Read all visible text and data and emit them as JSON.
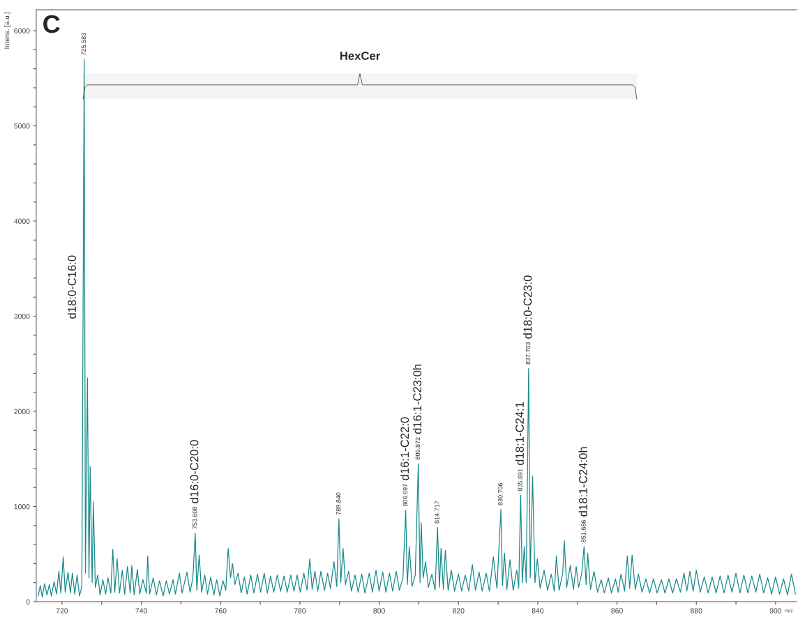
{
  "chart_data": {
    "type": "line",
    "title": "C",
    "xlabel": "m/z",
    "ylabel": "Intens. [a.u.]",
    "xlim": [
      713.5,
      905.3
    ],
    "ylim": [
      0,
      6220
    ],
    "xticks": [
      720,
      {
        "value": 730,
        "label": null
      },
      740,
      {
        "value": 750,
        "label": null
      },
      760,
      {
        "value": 770,
        "label": null
      },
      780,
      {
        "value": 790,
        "label": null
      },
      800,
      {
        "value": 810,
        "label": null
      },
      820,
      {
        "value": 830,
        "label": null
      },
      840,
      {
        "value": 850,
        "label": null
      },
      860,
      {
        "value": 870,
        "label": null
      },
      880,
      {
        "value": 890,
        "label": null
      },
      900
    ],
    "yticks": [
      0,
      {
        "value": 200,
        "label": null
      },
      {
        "value": 400,
        "label": null
      },
      {
        "value": 600,
        "label": null
      },
      {
        "value": 800,
        "label": null
      },
      1000,
      {
        "value": 1200,
        "label": null
      },
      {
        "value": 1400,
        "label": null
      },
      {
        "value": 1600,
        "label": null
      },
      {
        "value": 1800,
        "label": null
      },
      2000,
      {
        "value": 2200,
        "label": null
      },
      {
        "value": 2400,
        "label": null
      },
      {
        "value": 2600,
        "label": null
      },
      {
        "value": 2800,
        "label": null
      },
      3000,
      {
        "value": 3200,
        "label": null
      },
      {
        "value": 3400,
        "label": null
      },
      {
        "value": 3600,
        "label": null
      },
      {
        "value": 3800,
        "label": null
      },
      4000,
      {
        "value": 4200,
        "label": null
      },
      {
        "value": 4400,
        "label": null
      },
      {
        "value": 4600,
        "label": null
      },
      {
        "value": 4800,
        "label": null
      },
      5000,
      {
        "value": 5200,
        "label": null
      },
      {
        "value": 5400,
        "label": null
      },
      {
        "value": 5600,
        "label": null
      },
      {
        "value": 5800,
        "label": null
      },
      6000
    ],
    "grid": false,
    "legend": false,
    "series": [
      {
        "color": "#1a8a8a",
        "x": [
          714,
          714.5,
          715,
          715.6,
          716.2,
          716.8,
          717.3,
          718,
          718.6,
          719.2,
          719.7,
          720.3,
          720.8,
          721.5,
          722.1,
          722.6,
          723.2,
          723.8,
          724.4,
          725.0,
          725.583,
          725.9,
          726.4,
          726.8,
          727.1,
          727.6,
          727.9,
          728.4,
          729,
          729.6,
          730.3,
          731,
          731.6,
          732.3,
          732.8,
          733.3,
          733.9,
          734.5,
          735.2,
          735.8,
          736.5,
          737.2,
          737.6,
          738.2,
          739,
          739.6,
          740.4,
          741.3,
          741.6,
          742.1,
          743,
          743.8,
          744.6,
          745.5,
          746.3,
          747.1,
          748,
          748.6,
          749.6,
          750.3,
          751.5,
          752.3,
          753.0,
          753.608,
          754.0,
          754.6,
          755.2,
          756,
          756.7,
          757.5,
          758.3,
          759,
          759.8,
          760.6,
          761.3,
          761.9,
          762.5,
          763,
          763.6,
          764.4,
          765.2,
          766,
          766.7,
          767.6,
          768.4,
          769.3,
          770.1,
          771,
          771.8,
          772.6,
          773.4,
          774.3,
          775.1,
          776,
          776.8,
          777.7,
          778.5,
          779.3,
          780.1,
          781,
          781.8,
          782.5,
          783.1,
          783.8,
          784.5,
          785.3,
          786.2,
          787,
          787.7,
          788.6,
          789.3,
          789.84,
          790.3,
          790.9,
          791.5,
          792.3,
          793,
          793.9,
          794.7,
          795.6,
          796.4,
          797.5,
          798.3,
          799.2,
          800,
          800.9,
          801.7,
          802.6,
          803.4,
          804.3,
          805.1,
          806.0,
          806.697,
          807.1,
          807.6,
          808.3,
          809.1,
          809.872,
          810.3,
          810.6,
          811.1,
          811.7,
          812.4,
          813.3,
          814.1,
          814.717,
          815.2,
          815.6,
          816.2,
          816.7,
          817.4,
          818.2,
          819,
          820,
          820.8,
          821.7,
          822.6,
          823.5,
          824.3,
          825.2,
          826,
          827,
          827.8,
          828.8,
          829.7,
          830.706,
          831.1,
          831.6,
          832.2,
          833,
          833.8,
          834.7,
          835.2,
          835.691,
          836.1,
          836.6,
          837.1,
          837.703,
          838.1,
          838.7,
          839.3,
          839.9,
          840.6,
          841.6,
          842.5,
          843.4,
          844.2,
          844.7,
          845.4,
          846.3,
          846.7,
          847.3,
          848.2,
          849,
          849.7,
          850.3,
          851.1,
          851.686,
          852.2,
          852.6,
          853.3,
          854.2,
          855.1,
          856,
          856.8,
          857.8,
          858.6,
          859.6,
          860.3,
          861,
          861.9,
          862.6,
          863.2,
          863.8,
          864.6,
          865.4,
          866.3,
          867.3,
          868.2,
          869.2,
          870.1,
          871.2,
          872.1,
          873.1,
          874,
          875,
          876,
          876.9,
          877.6,
          878.4,
          879.2,
          880,
          881,
          882,
          883,
          884,
          885,
          886,
          887,
          888,
          889,
          890,
          891,
          892,
          893,
          894,
          895,
          896,
          897,
          898,
          899,
          900,
          901,
          902,
          903,
          904,
          905
        ],
        "values": [
          60,
          170,
          50,
          190,
          70,
          180,
          60,
          210,
          80,
          320,
          90,
          470,
          100,
          310,
          90,
          300,
          80,
          280,
          60,
          160,
          5700,
          300,
          2350,
          250,
          1420,
          200,
          1050,
          150,
          280,
          70,
          230,
          80,
          250,
          90,
          550,
          100,
          450,
          90,
          330,
          80,
          370,
          90,
          380,
          70,
          340,
          80,
          230,
          90,
          480,
          80,
          250,
          70,
          220,
          60,
          220,
          80,
          230,
          80,
          300,
          90,
          310,
          100,
          250,
          720,
          120,
          490,
          100,
          280,
          80,
          260,
          70,
          230,
          60,
          220,
          120,
          560,
          250,
          400,
          180,
          300,
          90,
          260,
          80,
          280,
          90,
          290,
          100,
          300,
          90,
          270,
          100,
          280,
          110,
          270,
          100,
          280,
          110,
          280,
          100,
          300,
          120,
          450,
          130,
          320,
          110,
          320,
          120,
          300,
          140,
          420,
          160,
          870,
          200,
          560,
          180,
          320,
          110,
          280,
          100,
          290,
          90,
          300,
          100,
          330,
          110,
          310,
          100,
          300,
          110,
          320,
          120,
          250,
          960,
          180,
          580,
          160,
          280,
          1450,
          200,
          830,
          250,
          420,
          150,
          290,
          120,
          780,
          150,
          560,
          130,
          540,
          120,
          330,
          110,
          290,
          110,
          280,
          110,
          390,
          120,
          310,
          110,
          300,
          110,
          470,
          140,
          970,
          170,
          510,
          130,
          440,
          120,
          330,
          140,
          1120,
          200,
          580,
          200,
          2450,
          250,
          1320,
          200,
          450,
          140,
          330,
          120,
          290,
          110,
          480,
          120,
          300,
          640,
          150,
          380,
          130,
          370,
          150,
          300,
          580,
          180,
          510,
          130,
          320,
          100,
          230,
          90,
          250,
          90,
          240,
          100,
          290,
          110,
          480,
          140,
          490,
          130,
          290,
          100,
          240,
          90,
          240,
          90,
          230,
          90,
          240,
          90,
          240,
          100,
          300,
          110,
          320,
          110,
          330,
          100,
          260,
          90,
          260,
          90,
          270,
          90,
          280,
          100,
          300,
          90,
          280,
          90,
          270,
          100,
          290,
          90,
          250,
          80,
          260,
          80,
          240,
          70,
          290,
          80
        ]
      }
    ],
    "annotations": [
      {
        "text": "725.583",
        "x": 725.583,
        "y": 5700
      },
      {
        "text": "753.608",
        "x": 753.608,
        "y": 720
      },
      {
        "text": "789.840",
        "x": 789.84,
        "y": 870
      },
      {
        "text": "806.697",
        "x": 806.697,
        "y": 960
      },
      {
        "text": "809.872",
        "x": 809.872,
        "y": 1450
      },
      {
        "text": "814.717",
        "x": 814.717,
        "y": 780
      },
      {
        "text": "830.706",
        "x": 830.706,
        "y": 970
      },
      {
        "text": "835.691",
        "x": 835.691,
        "y": 1120
      },
      {
        "text": "837.703",
        "x": 837.703,
        "y": 2450
      },
      {
        "text": "851.686",
        "x": 851.686,
        "y": 580
      },
      "d18:0-C16:0",
      {
        "text": "d16:0-C20:0",
        "x": 753.608,
        "y": 720
      },
      {
        "text": "d16:1-C22:0",
        "x": 806.697,
        "y": 960
      },
      {
        "text": "d16:1-C23:0h",
        "x": 809.872,
        "y": 1450
      },
      {
        "text": "d18:1-C24:1",
        "x": 835.691,
        "y": 1120
      },
      {
        "text": "d18:0-C23:0",
        "x": 837.703,
        "y": 2450
      },
      {
        "text": "d18:1-C24:0h",
        "x": 851.686,
        "y": 580
      }
    ],
    "bands": [
      {
        "axis": "x",
        "from": 725.3,
        "to": 865.0,
        "label": "HexCer"
      }
    ]
  }
}
